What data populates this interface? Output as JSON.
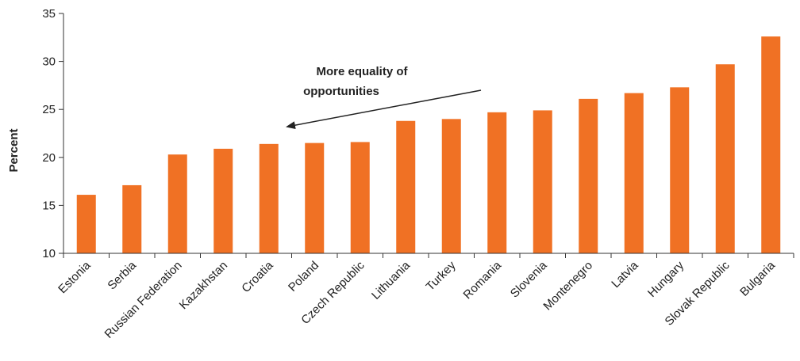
{
  "chart_data": {
    "type": "bar",
    "title": "",
    "xlabel": "",
    "ylabel": "Percent",
    "ylim": [
      10,
      35
    ],
    "yticks": [
      10,
      15,
      20,
      25,
      30,
      35
    ],
    "grid": false,
    "categories": [
      "Estonia",
      "Serbia",
      "Russian Federation",
      "Kazakhstan",
      "Croatia",
      "Poland",
      "Czech Republic",
      "Lithuania",
      "Turkey",
      "Romania",
      "Slovenia",
      "Montenegro",
      "Latvia",
      "Hungary",
      "Slovak Republic",
      "Bulgaria"
    ],
    "values": [
      16.1,
      17.1,
      20.3,
      20.9,
      21.4,
      21.5,
      21.6,
      23.8,
      24.0,
      24.7,
      24.9,
      26.1,
      26.7,
      27.3,
      29.7,
      32.6
    ],
    "bar_color": "#f07124",
    "annotation": {
      "lines": [
        "More equality of",
        "opportunities"
      ]
    }
  }
}
